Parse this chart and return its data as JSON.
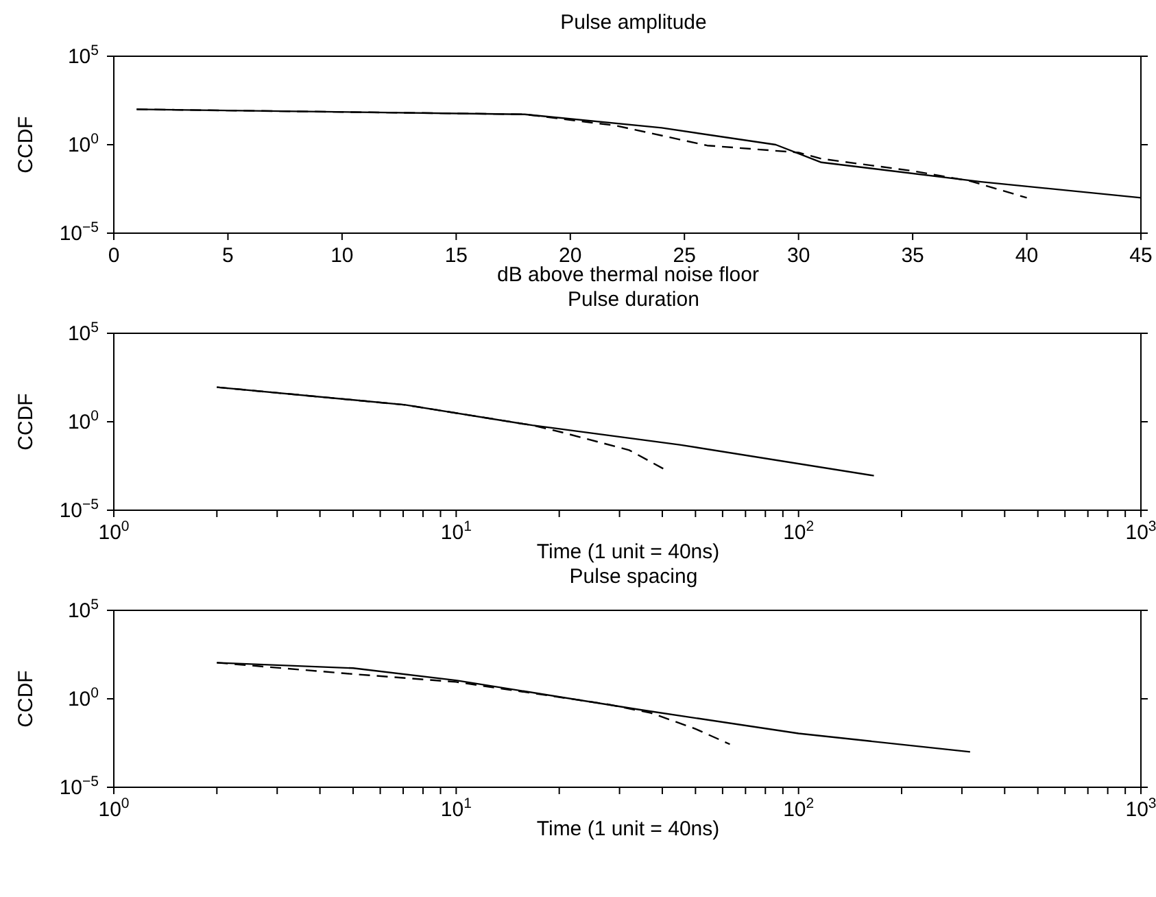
{
  "chart_data": [
    {
      "type": "line",
      "title": "Pulse amplitude",
      "xlabel": "dB above thermal noise floor",
      "ylabel": "CCDF",
      "log": "y",
      "marker": "none",
      "xlim": [
        0,
        45
      ],
      "xticks": [
        0,
        5,
        10,
        15,
        20,
        25,
        30,
        35,
        40,
        45
      ],
      "ylim": [
        1e-05,
        100000
      ],
      "yticks": [
        {
          "value": 1e-05,
          "label": "10$^{−5}$"
        },
        {
          "value": 1,
          "label": "10$^{0}$"
        },
        {
          "value": 100000,
          "label": "10$^{5}$"
        }
      ],
      "series": [
        {
          "color": "#000000",
          "line_style": "solid",
          "x": [
            1,
            18,
            24,
            29,
            31,
            38,
            45
          ],
          "values": [
            100,
            52,
            9,
            1,
            0.1,
            0.008,
            0.001
          ]
        },
        {
          "color": "#000000",
          "line_style": "dashed",
          "x": [
            1,
            18,
            22,
            26,
            30,
            31,
            35,
            37.5,
            40
          ],
          "values": [
            100,
            52,
            12,
            0.9,
            0.36,
            0.16,
            0.033,
            0.009,
            0.001
          ]
        }
      ]
    },
    {
      "type": "line",
      "title": "Pulse duration",
      "xlabel": "Time (1 unit = 40ns)",
      "ylabel": "CCDF",
      "log": "xy",
      "marker": "none",
      "xlim": [
        1,
        1000
      ],
      "xticks": [
        {
          "value": 1,
          "label": "10$^{0}$"
        },
        {
          "value": 2,
          "label": null
        },
        {
          "value": 3,
          "label": null
        },
        {
          "value": 4,
          "label": null
        },
        {
          "value": 5,
          "label": null
        },
        {
          "value": 6,
          "label": null
        },
        {
          "value": 7,
          "label": null
        },
        {
          "value": 8,
          "label": null
        },
        {
          "value": 9,
          "label": null
        },
        {
          "value": 10,
          "label": "10$^{1}$"
        },
        {
          "value": 20,
          "label": null
        },
        {
          "value": 30,
          "label": null
        },
        {
          "value": 40,
          "label": null
        },
        {
          "value": 50,
          "label": null
        },
        {
          "value": 60,
          "label": null
        },
        {
          "value": 70,
          "label": null
        },
        {
          "value": 80,
          "label": null
        },
        {
          "value": 90,
          "label": null
        },
        {
          "value": 100,
          "label": "10$^{2}$"
        },
        {
          "value": 200,
          "label": null
        },
        {
          "value": 300,
          "label": null
        },
        {
          "value": 400,
          "label": null
        },
        {
          "value": 500,
          "label": null
        },
        {
          "value": 600,
          "label": null
        },
        {
          "value": 700,
          "label": null
        },
        {
          "value": 800,
          "label": null
        },
        {
          "value": 900,
          "label": null
        },
        {
          "value": 1000,
          "label": "10$^{3}$"
        }
      ],
      "ylim": [
        1e-05,
        100000
      ],
      "yticks": [
        {
          "value": 1e-05,
          "label": "10$^{−5}$"
        },
        {
          "value": 1,
          "label": "10$^{0}$"
        },
        {
          "value": 100000,
          "label": "10$^{5}$"
        }
      ],
      "series": [
        {
          "color": "#000000",
          "line_style": "solid",
          "x": [
            2,
            7.1,
            16.7,
            45,
            166
          ],
          "values": [
            90,
            9,
            0.63,
            0.05,
            0.0009
          ]
        },
        {
          "color": "#000000",
          "line_style": "dashed",
          "x": [
            2,
            7.1,
            16.7,
            20.4,
            32,
            40.7
          ],
          "values": [
            90,
            9,
            0.63,
            0.25,
            0.025,
            0.002
          ]
        }
      ]
    },
    {
      "type": "line",
      "title": "Pulse spacing",
      "xlabel": "Time (1 unit = 40ns)",
      "ylabel": "CCDF",
      "log": "xy",
      "marker": "none",
      "xlim": [
        1,
        1000
      ],
      "xticks": [
        {
          "value": 1,
          "label": "10$^{0}$"
        },
        {
          "value": 2,
          "label": null
        },
        {
          "value": 3,
          "label": null
        },
        {
          "value": 4,
          "label": null
        },
        {
          "value": 5,
          "label": null
        },
        {
          "value": 6,
          "label": null
        },
        {
          "value": 7,
          "label": null
        },
        {
          "value": 8,
          "label": null
        },
        {
          "value": 9,
          "label": null
        },
        {
          "value": 10,
          "label": "10$^{1}$"
        },
        {
          "value": 20,
          "label": null
        },
        {
          "value": 30,
          "label": null
        },
        {
          "value": 40,
          "label": null
        },
        {
          "value": 50,
          "label": null
        },
        {
          "value": 60,
          "label": null
        },
        {
          "value": 70,
          "label": null
        },
        {
          "value": 80,
          "label": null
        },
        {
          "value": 90,
          "label": null
        },
        {
          "value": 100,
          "label": "10$^{2}$"
        },
        {
          "value": 200,
          "label": null
        },
        {
          "value": 300,
          "label": null
        },
        {
          "value": 400,
          "label": null
        },
        {
          "value": 500,
          "label": null
        },
        {
          "value": 600,
          "label": null
        },
        {
          "value": 700,
          "label": null
        },
        {
          "value": 800,
          "label": null
        },
        {
          "value": 900,
          "label": null
        },
        {
          "value": 1000,
          "label": "10$^{3}$"
        }
      ],
      "ylim": [
        1e-05,
        100000
      ],
      "yticks": [
        {
          "value": 1e-05,
          "label": "10$^{−5}$"
        },
        {
          "value": 1,
          "label": "10$^{0}$"
        },
        {
          "value": 100000,
          "label": "10$^{5}$"
        }
      ],
      "series": [
        {
          "color": "#000000",
          "line_style": "solid",
          "x": [
            2,
            5,
            10,
            34,
            100,
            317
          ],
          "values": [
            110,
            54,
            11,
            0.25,
            0.011,
            0.001
          ]
        },
        {
          "color": "#000000",
          "line_style": "dashed",
          "x": [
            2,
            5,
            10,
            27.5,
            37,
            50,
            63
          ],
          "values": [
            110,
            25,
            9,
            0.5,
            0.16,
            0.02,
            0.0027
          ]
        }
      ]
    }
  ]
}
